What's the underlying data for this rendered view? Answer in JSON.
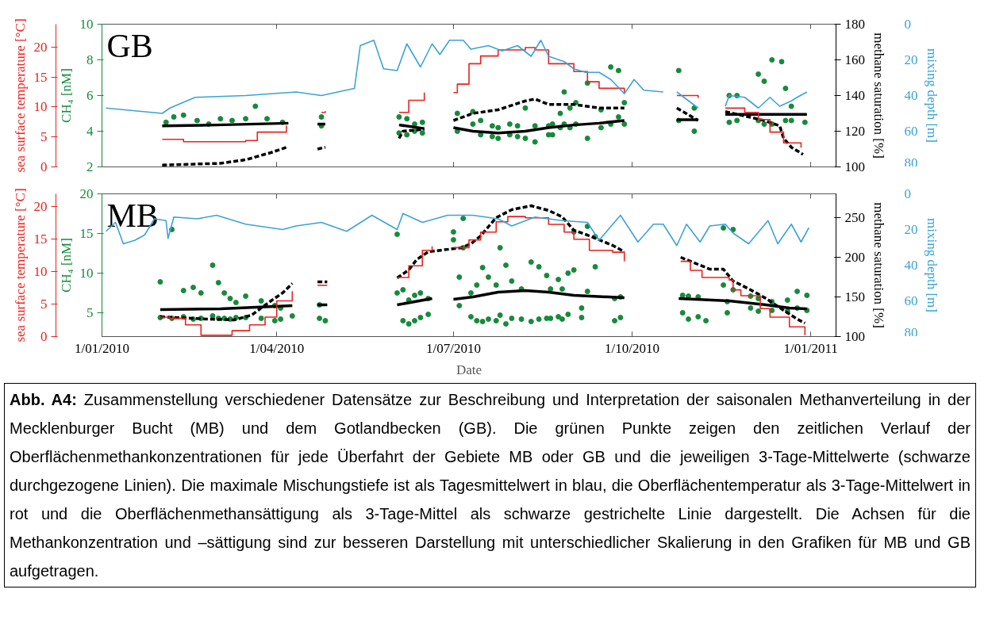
{
  "chart_data": [
    {
      "type": "line",
      "title": "GB",
      "ylabel": "CH₄ [nM]",
      "y2label": "methane saturation [%]",
      "y3label": "sea surface temperature [°C]",
      "xlim": [
        "2010-01-01",
        "2011-01-14"
      ],
      "xticks": [
        {
          "value": "2010-01-01",
          "label": null
        },
        {
          "value": "2010-04-01",
          "label": null
        },
        {
          "value": "2010-07-01",
          "label": null
        },
        {
          "value": "2010-10-01",
          "label": null
        },
        {
          "value": "2011-01-01",
          "label": null
        }
      ],
      "ylim": [
        2,
        10
      ],
      "yticks": [
        2,
        4,
        6,
        8,
        10
      ],
      "y2lim": [
        100,
        180
      ],
      "y2ticks": [
        100,
        120,
        140,
        160,
        180
      ],
      "y3lim": [
        0,
        23.8
      ],
      "y3ticks": [
        0,
        5,
        10,
        15,
        20
      ],
      "tick_labels": "y",
      "grid": false,
      "series": [
        {
          "type": "scatter",
          "marker": "circle",
          "color": "#178a3c",
          "x": [
            "2010-02-03",
            "2010-02-07",
            "2010-02-12",
            "2010-02-19",
            "2010-02-25",
            "2010-03-03",
            "2010-03-09",
            "2010-03-16",
            "2010-03-21",
            "2010-03-27",
            "2010-04-04",
            "2010-04-24",
            "2010-04-24",
            "2010-06-03",
            "2010-06-03",
            "2010-06-07",
            "2010-06-07",
            "2010-06-11",
            "2010-06-11",
            "2010-06-15",
            "2010-06-15",
            "2010-07-03",
            "2010-07-03",
            "2010-07-11",
            "2010-07-11",
            "2010-07-15",
            "2010-07-15",
            "2010-07-21",
            "2010-07-21",
            "2010-07-24",
            "2010-07-24",
            "2010-07-30",
            "2010-07-30",
            "2010-08-03",
            "2010-08-03",
            "2010-08-07",
            "2010-08-07",
            "2010-08-12",
            "2010-08-12",
            "2010-08-19",
            "2010-08-19",
            "2010-08-21",
            "2010-08-21",
            "2010-08-25",
            "2010-08-25",
            "2010-08-27",
            "2010-08-27",
            "2010-08-30",
            "2010-08-30",
            "2010-09-02",
            "2010-09-02",
            "2010-09-08",
            "2010-09-08",
            "2010-09-15",
            "2010-09-15",
            "2010-09-20",
            "2010-09-20",
            "2010-09-24",
            "2010-09-24",
            "2010-09-27",
            "2010-09-27",
            "2010-10-25",
            "2010-10-25",
            "2010-11-02",
            "2010-11-02",
            "2010-11-20",
            "2010-11-20",
            "2010-11-24",
            "2010-11-24",
            "2010-12-05",
            "2010-12-05",
            "2010-12-08",
            "2010-12-08",
            "2010-12-12",
            "2010-12-12",
            "2010-12-17",
            "2010-12-19",
            "2010-12-19",
            "2010-12-22",
            "2010-12-22",
            "2010-12-29"
          ],
          "values": [
            4.5,
            4.8,
            4.9,
            4.6,
            4.4,
            4.7,
            4.6,
            4.7,
            5.4,
            4.7,
            4.5,
            4.3,
            4.8,
            3.9,
            4.8,
            3.8,
            4.7,
            4.0,
            4.4,
            3.9,
            4.5,
            4.0,
            5.0,
            4.4,
            5.1,
            3.8,
            4.6,
            3.7,
            4.3,
            3.6,
            4.2,
            3.8,
            4.4,
            3.7,
            4.3,
            3.6,
            5.3,
            3.4,
            4.3,
            3.8,
            4.3,
            3.8,
            4.4,
            4.2,
            5.0,
            4.4,
            6.2,
            4.2,
            5.3,
            4.4,
            5.6,
            3.6,
            6.7,
            4.2,
            5.2,
            4.4,
            7.6,
            4.8,
            7.4,
            4.4,
            5.6,
            4.6,
            7.4,
            4.0,
            5.3,
            4.5,
            6.0,
            4.6,
            6.0,
            4.6,
            7.2,
            4.4,
            6.8,
            4.4,
            8.0,
            7.9,
            4.6,
            6.4,
            4.6,
            5.4,
            4.5
          ]
        },
        {
          "color": "#000000",
          "x": [
            "2010-02-01",
            "2010-03-01",
            "2010-04-07",
            "2010-04-15",
            "2010-04-22",
            "2010-04-26",
            "2010-05-20",
            "2010-06-03",
            "2010-06-16",
            "2010-06-25",
            "2010-07-01",
            "2010-07-11",
            "2010-07-24",
            "2010-08-07",
            "2010-08-19",
            "2010-09-01",
            "2010-09-14",
            "2010-09-27",
            "2010-10-15",
            "2010-10-24",
            "2010-11-04",
            "2010-11-10",
            "2010-11-18",
            "2010-12-30"
          ],
          "values": [
            4.3,
            4.35,
            4.45,
            null,
            4.4,
            4.4,
            null,
            4.35,
            4.15,
            null,
            4.2,
            4.0,
            3.9,
            4.0,
            4.2,
            4.35,
            4.45,
            4.6,
            null,
            4.65,
            4.65,
            null,
            4.95,
            4.95
          ]
        },
        {
          "axis": "y2",
          "line_style": "dashed",
          "color": "#000000",
          "x": [
            "2010-02-01",
            "2010-03-03",
            "2010-03-16",
            "2010-03-29",
            "2010-04-06",
            "2010-04-15",
            "2010-04-22",
            "2010-04-26",
            "2010-05-20",
            "2010-06-03",
            "2010-06-05",
            "2010-06-16",
            "2010-06-25",
            "2010-07-01",
            "2010-07-11",
            "2010-07-24",
            "2010-08-07",
            "2010-08-12",
            "2010-08-19",
            "2010-09-01",
            "2010-09-14",
            "2010-09-27",
            "2010-10-15",
            "2010-10-24",
            "2010-11-04",
            "2010-11-10",
            "2010-11-18",
            "2010-12-08",
            "2010-12-16",
            "2010-12-18",
            "2010-12-22",
            "2010-12-28"
          ],
          "values": [
            101,
            102,
            104,
            108,
            111,
            null,
            110,
            111,
            null,
            116,
            120,
            121,
            null,
            126,
            130,
            132,
            137,
            138,
            135,
            135,
            133,
            133,
            null,
            133,
            126,
            null,
            131,
            126,
            123,
            116,
            111,
            107
          ]
        },
        {
          "type": "step",
          "axis": "y3",
          "color": "#e8231f",
          "x": [
            "2010-02-01",
            "2010-02-12",
            "2010-03-09",
            "2010-03-16",
            "2010-03-22",
            "2010-04-06",
            "2010-04-15",
            "2010-04-24",
            "2010-04-26",
            "2010-05-20",
            "2010-06-03",
            "2010-06-08",
            "2010-06-16",
            "2010-06-25",
            "2010-07-01",
            "2010-07-03",
            "2010-07-09",
            "2010-07-15",
            "2010-07-24",
            "2010-08-07",
            "2010-08-12",
            "2010-08-19",
            "2010-09-01",
            "2010-09-08",
            "2010-09-14",
            "2010-09-27",
            "2010-10-15",
            "2010-10-24",
            "2010-11-04",
            "2010-11-10",
            "2010-11-18",
            "2010-11-28",
            "2010-12-05",
            "2010-12-11",
            "2010-12-18",
            "2010-12-27"
          ],
          "values": [
            4.6,
            4.2,
            4.2,
            4.4,
            5.8,
            6.9,
            null,
            9.1,
            9.3,
            null,
            9.1,
            11.1,
            12.4,
            null,
            12.4,
            13.8,
            17.2,
            18.5,
            19.5,
            19.9,
            19.5,
            17.2,
            15.9,
            14.2,
            13.1,
            12.4,
            null,
            11.9,
            11.5,
            null,
            9.8,
            9.1,
            7.9,
            5.8,
            4.0,
            3.2
          ]
        }
      ]
    },
    {
      "type": "line",
      "ylabel": "mixing depth [m]",
      "xlim": [
        "2010-01-01",
        "2011-01-14"
      ],
      "xticks": [
        {
          "value": "2010-01-01",
          "label": null
        },
        {
          "value": "2010-04-01",
          "label": null
        },
        {
          "value": "2010-07-01",
          "label": null
        },
        {
          "value": "2010-10-01",
          "label": null
        },
        {
          "value": "2011-01-01",
          "label": null
        }
      ],
      "ylim": [
        80,
        0
      ],
      "yticks": [
        0,
        20,
        40,
        60,
        80
      ],
      "tick_labels": "y",
      "series": [
        {
          "color": "#3ba3d6",
          "x": [
            "2010-01-03",
            "2010-02-01",
            "2010-02-05",
            "2010-02-18",
            "2010-03-16",
            "2010-04-11",
            "2010-04-24",
            "2010-05-11",
            "2010-05-14",
            "2010-05-21",
            "2010-05-26",
            "2010-06-02",
            "2010-06-07",
            "2010-06-14",
            "2010-06-20",
            "2010-06-24",
            "2010-06-29",
            "2010-07-06",
            "2010-07-10",
            "2010-07-19",
            "2010-07-26",
            "2010-08-03",
            "2010-08-10",
            "2010-08-15",
            "2010-08-19",
            "2010-08-27",
            "2010-09-01",
            "2010-09-07",
            "2010-09-14",
            "2010-09-20",
            "2010-09-27",
            "2010-10-02",
            "2010-10-07",
            "2010-10-17",
            "2010-10-20",
            "2010-10-24",
            "2010-11-04",
            "2010-11-10",
            "2010-11-18",
            "2010-11-20",
            "2010-11-28",
            "2010-12-05",
            "2010-12-11",
            "2010-12-16",
            "2010-12-22",
            "2010-12-25",
            "2010-12-30"
          ],
          "values": [
            47,
            50,
            47,
            41,
            40,
            38,
            40,
            36,
            12,
            9,
            25,
            26,
            11,
            24,
            11,
            17,
            9,
            9,
            14,
            12,
            15,
            12,
            18,
            9,
            18,
            21,
            25,
            27,
            27,
            31,
            39,
            31,
            37,
            38,
            null,
            38,
            47,
            null,
            46,
            40,
            41,
            47,
            41,
            46,
            43,
            41,
            38
          ]
        }
      ]
    },
    {
      "type": "line",
      "title": "MB",
      "xlabel": "Date",
      "ylabel": "CH₄ [nM]",
      "y2label": "methane saturation [%]",
      "y3label": "sea surface temperature [°C]",
      "xlim": [
        "2010-01-01",
        "2011-01-14"
      ],
      "xticks": [
        {
          "value": "2010-01-01",
          "label": "1/01/2010"
        },
        {
          "value": "2010-04-01",
          "label": "1/04/2010"
        },
        {
          "value": "2010-07-01",
          "label": "1/07/2010"
        },
        {
          "value": "2010-10-01",
          "label": "1/10/2010"
        },
        {
          "value": "2011-01-01",
          "label": "1/01/2011"
        }
      ],
      "ylim": [
        2,
        20
      ],
      "yticks": [
        5,
        10,
        15,
        20
      ],
      "y2lim": [
        100,
        280
      ],
      "y2ticks": [
        100,
        150,
        200,
        250
      ],
      "y3lim": [
        0,
        22
      ],
      "y3ticks": [
        0,
        5,
        10,
        15,
        20
      ],
      "grid": false,
      "annotations": [
        "Abb. A4: Zusammenstellung verschiedener Datensätze zur Beschreibung und Interpretation der saisonalen Methanverteilung in der Mecklenburger Bucht (MB) und dem Gotlandbecken (GB). Die grünen Punkte zeigen den zeitlichen Verlauf der Oberflächenmethankonzentrationen für jede Überfahrt der Gebiete MB oder GB und die jeweiligen 3-Tage-Mittelwerte (schwarze durchgezogene Linien). Die maximale Mischungstiefe ist als Tagesmittelwert in blau, die Oberflächentemperatur als 3-Tage-Mittelwert in rot und die Oberflächenmethansättigung als 3-Tage-Mittel als schwarze gestrichelte Linie dargestellt. Die Achsen für die Methankonzentration und –sättigung sind zur besseren Darstellung mit unterschiedlicher Skalierung in den Grafiken für MB und GB aufgetragen."
      ],
      "series": [
        {
          "type": "scatter",
          "marker": "circle",
          "color": "#178a3c",
          "x": [
            "2010-01-31",
            "2010-01-31",
            "2010-02-06",
            "2010-02-06",
            "2010-02-12",
            "2010-02-12",
            "2010-02-17",
            "2010-02-17",
            "2010-02-21",
            "2010-02-21",
            "2010-02-27",
            "2010-02-27",
            "2010-03-02",
            "2010-03-02",
            "2010-03-05",
            "2010-03-05",
            "2010-03-08",
            "2010-03-08",
            "2010-03-11",
            "2010-03-11",
            "2010-03-16",
            "2010-03-16",
            "2010-03-24",
            "2010-03-24",
            "2010-03-31",
            "2010-03-31",
            "2010-04-03",
            "2010-04-03",
            "2010-04-09",
            "2010-04-23",
            "2010-04-23",
            "2010-04-26",
            "2010-06-02",
            "2010-06-02",
            "2010-06-05",
            "2010-06-05",
            "2010-06-08",
            "2010-06-08",
            "2010-06-11",
            "2010-06-11",
            "2010-06-14",
            "2010-06-14",
            "2010-06-18",
            "2010-06-18",
            "2010-07-01",
            "2010-07-01",
            "2010-07-04",
            "2010-07-04",
            "2010-07-06",
            "2010-07-06",
            "2010-07-10",
            "2010-07-10",
            "2010-07-13",
            "2010-07-13",
            "2010-07-16",
            "2010-07-16",
            "2010-07-19",
            "2010-07-19",
            "2010-07-23",
            "2010-07-23",
            "2010-07-25",
            "2010-07-25",
            "2010-07-28",
            "2010-07-28",
            "2010-07-31",
            "2010-07-31",
            "2010-08-05",
            "2010-08-05",
            "2010-08-10",
            "2010-08-10",
            "2010-08-14",
            "2010-08-14",
            "2010-08-18",
            "2010-08-18",
            "2010-08-20",
            "2010-08-20",
            "2010-08-24",
            "2010-08-24",
            "2010-08-26",
            "2010-08-26",
            "2010-08-29",
            "2010-08-29",
            "2010-09-01",
            "2010-09-01",
            "2010-09-05",
            "2010-09-05",
            "2010-09-08",
            "2010-09-08",
            "2010-09-12",
            "2010-09-12",
            "2010-09-22",
            "2010-09-22",
            "2010-09-25",
            "2010-09-25",
            "2010-10-27",
            "2010-10-27",
            "2010-10-30",
            "2010-10-30",
            "2010-11-04",
            "2010-11-04",
            "2010-11-08",
            "2010-11-17",
            "2010-11-17",
            "2010-11-19",
            "2010-11-19",
            "2010-11-22",
            "2010-11-22",
            "2010-12-01",
            "2010-12-01",
            "2010-12-05",
            "2010-12-05",
            "2010-12-12",
            "2010-12-12",
            "2010-12-20",
            "2010-12-20",
            "2010-12-25",
            "2010-12-25",
            "2010-12-30",
            "2010-12-30"
          ],
          "values": [
            4.4,
            8.9,
            4.3,
            15.5,
            4.5,
            7.8,
            4.2,
            8.2,
            4.3,
            7.5,
            4.6,
            11.0,
            4.3,
            8.8,
            4.3,
            7.5,
            4.2,
            6.8,
            4.4,
            6.3,
            4.4,
            7.1,
            4.3,
            6.5,
            4.0,
            5.9,
            4.2,
            5.6,
            4.6,
            4.3,
            6.0,
            4.0,
            7.5,
            14.9,
            4.0,
            7.9,
            3.6,
            6.6,
            4.0,
            7.2,
            4.4,
            7.5,
            4.8,
            6.8,
            14.2,
            15.2,
            5.9,
            9.5,
            13.2,
            16.9,
            4.5,
            7.5,
            4.0,
            8.5,
            3.9,
            10.7,
            4.2,
            9.5,
            4.0,
            8.5,
            4.7,
            13.2,
            3.6,
            11.0,
            4.3,
            9.0,
            4.2,
            8.0,
            3.9,
            11.4,
            4.2,
            10.8,
            4.3,
            9.7,
            4.3,
            8.0,
            4.5,
            9.2,
            4.2,
            8.0,
            4.8,
            10.0,
            10.4,
            15.2,
            4.4,
            5.6,
            7.7,
            15.9,
            10.8,
            14.6,
            4.0,
            6.8,
            4.4,
            7.0,
            5.0,
            7.2,
            4.2,
            7.1,
            4.5,
            7.0,
            4.0,
            8.5,
            15.7,
            5.0,
            6.4,
            7.9,
            15.5,
            5.6,
            7.1,
            5.2,
            6.8,
            5.3,
            6.4,
            5.2,
            6.6,
            5.6,
            7.7,
            5.3,
            7.2
          ]
        },
        {
          "color": "#000000",
          "x": [
            "2010-01-31",
            "2010-03-03",
            "2010-04-09",
            "2010-04-15",
            "2010-04-22",
            "2010-04-27",
            "2010-05-20",
            "2010-06-02",
            "2010-06-20",
            "2010-06-25",
            "2010-07-01",
            "2010-07-11",
            "2010-07-24",
            "2010-08-07",
            "2010-08-19",
            "2010-09-01",
            "2010-09-27",
            "2010-10-15",
            "2010-10-25",
            "2010-11-20",
            "2010-12-09",
            "2010-12-21",
            "2010-12-30"
          ],
          "values": [
            5.4,
            5.5,
            5.9,
            null,
            6.0,
            6.0,
            null,
            6.0,
            6.8,
            null,
            6.7,
            7.0,
            7.6,
            7.8,
            7.6,
            7.2,
            6.9,
            null,
            6.8,
            6.5,
            6.0,
            5.6,
            5.5
          ]
        },
        {
          "axis": "y2",
          "line_style": "dashed",
          "color": "#000000",
          "x": [
            "2010-01-31",
            "2010-02-08",
            "2010-02-25",
            "2010-03-10",
            "2010-03-19",
            "2010-03-29",
            "2010-04-04",
            "2010-04-09",
            "2010-04-15",
            "2010-04-22",
            "2010-04-27",
            "2010-05-20",
            "2010-06-02",
            "2010-06-08",
            "2010-06-12",
            "2010-06-18",
            "2010-07-05",
            "2010-07-10",
            "2010-07-15",
            "2010-07-23",
            "2010-07-31",
            "2010-08-10",
            "2010-08-19",
            "2010-08-26",
            "2010-09-01",
            "2010-09-08",
            "2010-09-14",
            "2010-09-21",
            "2010-09-27",
            "2010-10-15",
            "2010-10-26",
            "2010-11-04",
            "2010-11-10",
            "2010-11-17",
            "2010-11-22",
            "2010-11-27",
            "2010-12-04",
            "2010-12-09",
            "2010-12-15",
            "2010-12-20",
            "2010-12-25",
            "2010-12-29"
          ],
          "values": [
            125,
            124,
            122,
            121,
            127,
            145,
            155,
            167,
            null,
            169,
            169,
            null,
            174,
            184,
            197,
            207,
            212,
            217,
            227,
            250,
            260,
            265,
            259,
            251,
            234,
            228,
            222,
            215,
            207,
            null,
            200,
            191,
            185,
            185,
            170,
            164,
            155,
            148,
            138,
            130,
            122,
            117
          ]
        },
        {
          "type": "step",
          "axis": "y3",
          "color": "#e8231f",
          "x": [
            "2010-01-31",
            "2010-02-05",
            "2010-02-13",
            "2010-02-21",
            "2010-03-01",
            "2010-03-09",
            "2010-03-18",
            "2010-03-26",
            "2010-04-01",
            "2010-04-09",
            "2010-04-15",
            "2010-04-22",
            "2010-04-27",
            "2010-05-20",
            "2010-06-02",
            "2010-06-08",
            "2010-06-15",
            "2010-06-20",
            "2010-06-25",
            "2010-07-01",
            "2010-07-09",
            "2010-07-15",
            "2010-07-23",
            "2010-07-29",
            "2010-08-07",
            "2010-08-19",
            "2010-08-27",
            "2010-09-01",
            "2010-09-09",
            "2010-09-21",
            "2010-09-27",
            "2010-10-15",
            "2010-10-26",
            "2010-10-31",
            "2010-11-06",
            "2010-11-20",
            "2010-11-22",
            "2010-11-26",
            "2010-12-06",
            "2010-12-11",
            "2010-12-21",
            "2010-12-29"
          ],
          "values": [
            3.0,
            2.8,
            1.8,
            0.2,
            0.2,
            0.9,
            1.8,
            3.0,
            5.5,
            7.0,
            null,
            7.9,
            7.9,
            null,
            9.1,
            10.9,
            13.3,
            13.9,
            null,
            13.7,
            14.9,
            16.1,
            17.7,
            18.5,
            18.3,
            17.3,
            16.1,
            15.0,
            13.3,
            13.0,
            11.6,
            null,
            11.6,
            10.2,
            9.1,
            8.7,
            7.2,
            6.3,
            4.3,
            3.0,
            1.5,
            0.2
          ]
        }
      ]
    },
    {
      "type": "line",
      "ylabel": "mixing depth [m]",
      "xlim": [
        "2010-01-01",
        "2011-01-14"
      ],
      "xticks": [
        {
          "value": "2010-01-01",
          "label": null
        },
        {
          "value": "2010-04-01",
          "label": null
        },
        {
          "value": "2010-07-01",
          "label": null
        },
        {
          "value": "2010-10-01",
          "label": null
        },
        {
          "value": "2011-01-01",
          "label": null
        }
      ],
      "ylim": [
        80,
        0
      ],
      "yticks": [
        0,
        20,
        40,
        60,
        80
      ],
      "tick_labels": "y",
      "series": [
        {
          "color": "#3ba3d6",
          "x": [
            "2010-01-03",
            "2010-01-08",
            "2010-01-12",
            "2010-01-18",
            "2010-01-23",
            "2010-01-28",
            "2010-02-03",
            "2010-02-04",
            "2010-02-07",
            "2010-02-19",
            "2010-03-01",
            "2010-03-16",
            "2010-04-04",
            "2010-04-11",
            "2010-04-24",
            "2010-05-07",
            "2010-05-20",
            "2010-06-02",
            "2010-06-05",
            "2010-06-15",
            "2010-06-28",
            "2010-07-11",
            "2010-07-24",
            "2010-07-31",
            "2010-08-12",
            "2010-08-26",
            "2010-09-08",
            "2010-09-14",
            "2010-09-25",
            "2010-10-04",
            "2010-10-12",
            "2010-10-17",
            "2010-10-24",
            "2010-10-29",
            "2010-11-05",
            "2010-11-10",
            "2010-11-18",
            "2010-11-22",
            "2010-11-30",
            "2010-12-10",
            "2010-12-15",
            "2010-12-22",
            "2010-12-27",
            "2010-12-31"
          ],
          "values": [
            21,
            16,
            28,
            26,
            23,
            14,
            15,
            25,
            13,
            14,
            12,
            17,
            20,
            18,
            16,
            21,
            12,
            20,
            11,
            16,
            12,
            12,
            14,
            18,
            13,
            15,
            16,
            26,
            12,
            27,
            17,
            17,
            29,
            17,
            27,
            18,
            17,
            22,
            28,
            15,
            28,
            17,
            27,
            19
          ]
        }
      ]
    }
  ]
}
